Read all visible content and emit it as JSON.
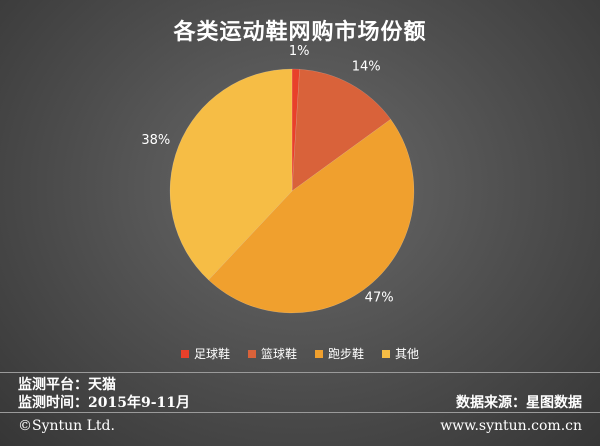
{
  "chart_data": {
    "type": "pie",
    "title": "各类运动鞋网购市场份额",
    "slices": [
      {
        "name": "足球鞋",
        "value": 1,
        "label": "1%",
        "color": "#e8402a"
      },
      {
        "name": "篮球鞋",
        "value": 14,
        "label": "14%",
        "color": "#d9623a"
      },
      {
        "name": "跑步鞋",
        "value": 47,
        "label": "47%",
        "color": "#f0a02e"
      },
      {
        "name": "其他",
        "value": 38,
        "label": "38%",
        "color": "#f6bd45"
      }
    ],
    "legend_position": "bottom"
  },
  "footer": {
    "platform": "监测平台：天猫",
    "period": "监测时间：2015年9-11月",
    "source": "数据来源：星图数据",
    "copyright": "©Syntun Ltd.",
    "website": "www.syntun.com.cn"
  }
}
